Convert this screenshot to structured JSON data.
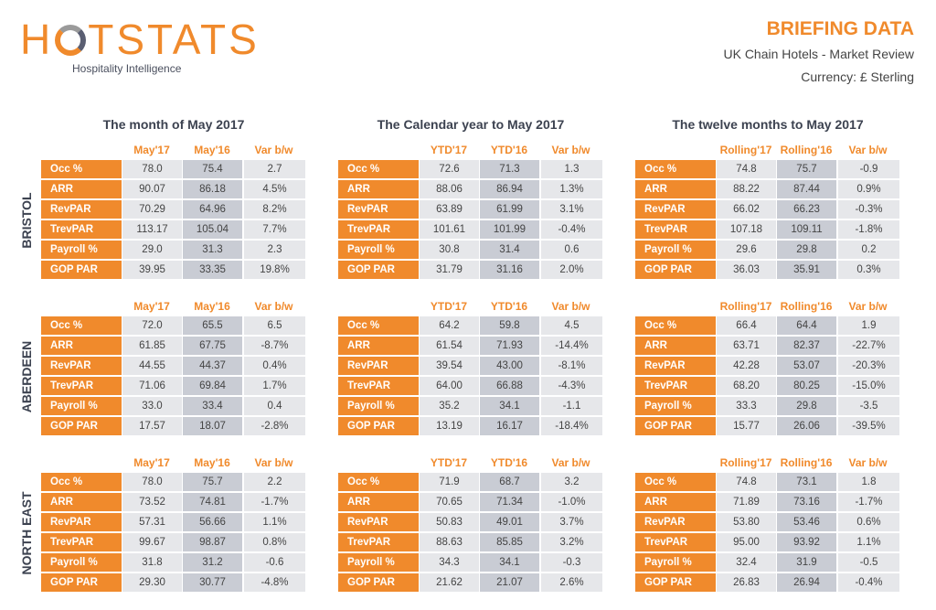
{
  "logo": {
    "text": "HOTSTATS",
    "tagline": "Hospitality Intelligence"
  },
  "header": {
    "title": "BRIEFING DATA",
    "subtitle": "UK Chain Hotels - Market Review",
    "currency": "Currency: £ Sterling"
  },
  "periods": [
    {
      "title": "The month of May 2017",
      "cols": [
        "May'17",
        "May'16",
        "Var b/w"
      ]
    },
    {
      "title": "The Calendar year to May 2017",
      "cols": [
        "YTD'17",
        "YTD'16",
        "Var b/w"
      ]
    },
    {
      "title": "The twelve months to May 2017",
      "cols": [
        "Rolling'17",
        "Rolling'16",
        "Var b/w"
      ]
    }
  ],
  "metrics": [
    "Occ %",
    "ARR",
    "RevPAR",
    "TrevPAR",
    "Payroll %",
    "GOP PAR"
  ],
  "regions": [
    {
      "name": "BRISTOL",
      "tables": [
        [
          [
            "78.0",
            "75.4",
            "2.7"
          ],
          [
            "90.07",
            "86.18",
            "4.5%"
          ],
          [
            "70.29",
            "64.96",
            "8.2%"
          ],
          [
            "113.17",
            "105.04",
            "7.7%"
          ],
          [
            "29.0",
            "31.3",
            "2.3"
          ],
          [
            "39.95",
            "33.35",
            "19.8%"
          ]
        ],
        [
          [
            "72.6",
            "71.3",
            "1.3"
          ],
          [
            "88.06",
            "86.94",
            "1.3%"
          ],
          [
            "63.89",
            "61.99",
            "3.1%"
          ],
          [
            "101.61",
            "101.99",
            "-0.4%"
          ],
          [
            "30.8",
            "31.4",
            "0.6"
          ],
          [
            "31.79",
            "31.16",
            "2.0%"
          ]
        ],
        [
          [
            "74.8",
            "75.7",
            "-0.9"
          ],
          [
            "88.22",
            "87.44",
            "0.9%"
          ],
          [
            "66.02",
            "66.23",
            "-0.3%"
          ],
          [
            "107.18",
            "109.11",
            "-1.8%"
          ],
          [
            "29.6",
            "29.8",
            "0.2"
          ],
          [
            "36.03",
            "35.91",
            "0.3%"
          ]
        ]
      ]
    },
    {
      "name": "ABERDEEN",
      "tables": [
        [
          [
            "72.0",
            "65.5",
            "6.5"
          ],
          [
            "61.85",
            "67.75",
            "-8.7%"
          ],
          [
            "44.55",
            "44.37",
            "0.4%"
          ],
          [
            "71.06",
            "69.84",
            "1.7%"
          ],
          [
            "33.0",
            "33.4",
            "0.4"
          ],
          [
            "17.57",
            "18.07",
            "-2.8%"
          ]
        ],
        [
          [
            "64.2",
            "59.8",
            "4.5"
          ],
          [
            "61.54",
            "71.93",
            "-14.4%"
          ],
          [
            "39.54",
            "43.00",
            "-8.1%"
          ],
          [
            "64.00",
            "66.88",
            "-4.3%"
          ],
          [
            "35.2",
            "34.1",
            "-1.1"
          ],
          [
            "13.19",
            "16.17",
            "-18.4%"
          ]
        ],
        [
          [
            "66.4",
            "64.4",
            "1.9"
          ],
          [
            "63.71",
            "82.37",
            "-22.7%"
          ],
          [
            "42.28",
            "53.07",
            "-20.3%"
          ],
          [
            "68.20",
            "80.25",
            "-15.0%"
          ],
          [
            "33.3",
            "29.8",
            "-3.5"
          ],
          [
            "15.77",
            "26.06",
            "-39.5%"
          ]
        ]
      ]
    },
    {
      "name": "NORTH EAST",
      "tables": [
        [
          [
            "78.0",
            "75.7",
            "2.2"
          ],
          [
            "73.52",
            "74.81",
            "-1.7%"
          ],
          [
            "57.31",
            "56.66",
            "1.1%"
          ],
          [
            "99.67",
            "98.87",
            "0.8%"
          ],
          [
            "31.8",
            "31.2",
            "-0.6"
          ],
          [
            "29.30",
            "30.77",
            "-4.8%"
          ]
        ],
        [
          [
            "71.9",
            "68.7",
            "3.2"
          ],
          [
            "70.65",
            "71.34",
            "-1.0%"
          ],
          [
            "50.83",
            "49.01",
            "3.7%"
          ],
          [
            "88.63",
            "85.85",
            "3.2%"
          ],
          [
            "34.3",
            "34.1",
            "-0.3"
          ],
          [
            "21.62",
            "21.07",
            "2.6%"
          ]
        ],
        [
          [
            "74.8",
            "73.1",
            "1.8"
          ],
          [
            "71.89",
            "73.16",
            "-1.7%"
          ],
          [
            "53.80",
            "53.46",
            "0.6%"
          ],
          [
            "95.00",
            "93.92",
            "1.1%"
          ],
          [
            "32.4",
            "31.9",
            "-0.5"
          ],
          [
            "26.83",
            "26.94",
            "-0.4%"
          ]
        ]
      ]
    }
  ],
  "colors": {
    "accent": "#f08a2c",
    "cell_light": "#e6e7ea",
    "cell_dark": "#c9ccd4",
    "heading": "#3c4250"
  }
}
